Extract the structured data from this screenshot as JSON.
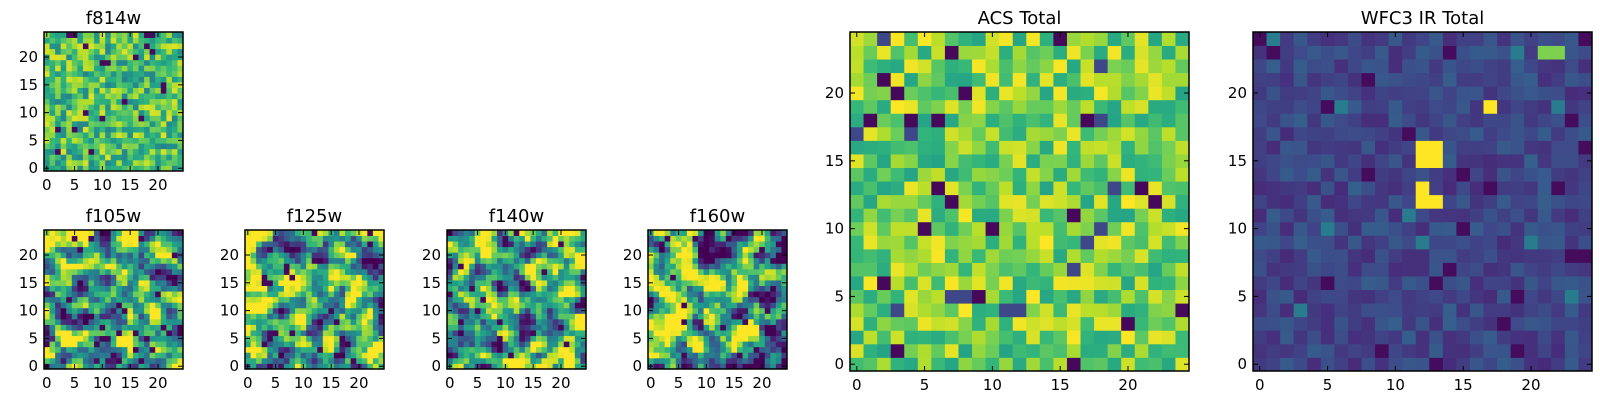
{
  "chart_data": [
    {
      "type": "heatmap",
      "title": "f814w",
      "grid_size": 25,
      "xlim": [
        -0.5,
        24.5
      ],
      "ylim": [
        -0.5,
        24.5
      ],
      "xticks": [
        0,
        5,
        10,
        15,
        20
      ],
      "yticks": [
        0,
        5,
        10,
        15,
        20
      ],
      "xlabel": "",
      "ylabel": "",
      "colormap": "viridis",
      "seed": 11,
      "mode": "noise"
    },
    {
      "type": "heatmap",
      "title": "f105w",
      "grid_size": 25,
      "xlim": [
        -0.5,
        24.5
      ],
      "ylim": [
        -0.5,
        24.5
      ],
      "xticks": [
        0,
        5,
        10,
        15,
        20
      ],
      "yticks": [
        0,
        5,
        10,
        15,
        20
      ],
      "xlabel": "",
      "ylabel": "",
      "colormap": "viridis",
      "seed": 23,
      "mode": "smooth"
    },
    {
      "type": "heatmap",
      "title": "f125w",
      "grid_size": 25,
      "xlim": [
        -0.5,
        24.5
      ],
      "ylim": [
        -0.5,
        24.5
      ],
      "xticks": [
        0,
        5,
        10,
        15,
        20
      ],
      "yticks": [
        0,
        5,
        10,
        15,
        20
      ],
      "xlabel": "",
      "ylabel": "",
      "colormap": "viridis",
      "seed": 37,
      "mode": "smooth"
    },
    {
      "type": "heatmap",
      "title": "f140w",
      "grid_size": 25,
      "xlim": [
        -0.5,
        24.5
      ],
      "ylim": [
        -0.5,
        24.5
      ],
      "xticks": [
        0,
        5,
        10,
        15,
        20
      ],
      "yticks": [
        0,
        5,
        10,
        15,
        20
      ],
      "xlabel": "",
      "ylabel": "",
      "colormap": "viridis",
      "seed": 41,
      "mode": "smooth"
    },
    {
      "type": "heatmap",
      "title": "f160w",
      "grid_size": 25,
      "xlim": [
        -0.5,
        24.5
      ],
      "ylim": [
        -0.5,
        24.5
      ],
      "xticks": [
        0,
        5,
        10,
        15,
        20
      ],
      "yticks": [
        0,
        5,
        10,
        15,
        20
      ],
      "xlabel": "",
      "ylabel": "",
      "colormap": "viridis",
      "seed": 53,
      "mode": "smooth"
    },
    {
      "type": "heatmap",
      "title": "ACS Total",
      "grid_size": 25,
      "xlim": [
        -0.5,
        24.5
      ],
      "ylim": [
        -0.5,
        24.5
      ],
      "xticks": [
        0,
        5,
        10,
        15,
        20
      ],
      "yticks": [
        0,
        5,
        10,
        15,
        20
      ],
      "xlabel": "",
      "ylabel": "",
      "colormap": "viridis",
      "seed": 67,
      "mode": "bright"
    },
    {
      "type": "heatmap",
      "title": "WFC3 IR Total",
      "grid_size": 25,
      "xlim": [
        -0.5,
        24.5
      ],
      "ylim": [
        -0.5,
        24.5
      ],
      "xticks": [
        0,
        5,
        10,
        15,
        20
      ],
      "yticks": [
        0,
        5,
        10,
        15,
        20
      ],
      "xlabel": "",
      "ylabel": "",
      "colormap": "viridis",
      "seed": 79,
      "mode": "dark",
      "hotspots": [
        {
          "x": 12,
          "y": 16,
          "value": 1.0
        },
        {
          "x": 13,
          "y": 16,
          "value": 1.0
        },
        {
          "x": 12,
          "y": 15,
          "value": 1.0
        },
        {
          "x": 13,
          "y": 15,
          "value": 1.0
        },
        {
          "x": 12,
          "y": 12,
          "value": 1.0
        },
        {
          "x": 12,
          "y": 13,
          "value": 1.0
        },
        {
          "x": 13,
          "y": 12,
          "value": 1.0
        },
        {
          "x": 17,
          "y": 19,
          "value": 1.0
        },
        {
          "x": 21,
          "y": 23,
          "value": 0.8
        },
        {
          "x": 22,
          "y": 23,
          "value": 0.8
        }
      ]
    }
  ],
  "colors": {
    "viridis_stops": [
      "#440154",
      "#482878",
      "#3e4989",
      "#31688e",
      "#26828e",
      "#1f9e89",
      "#35b779",
      "#6ece58",
      "#b5de2b",
      "#fde725"
    ],
    "axes_edge": "#000000",
    "background": "#ffffff"
  }
}
